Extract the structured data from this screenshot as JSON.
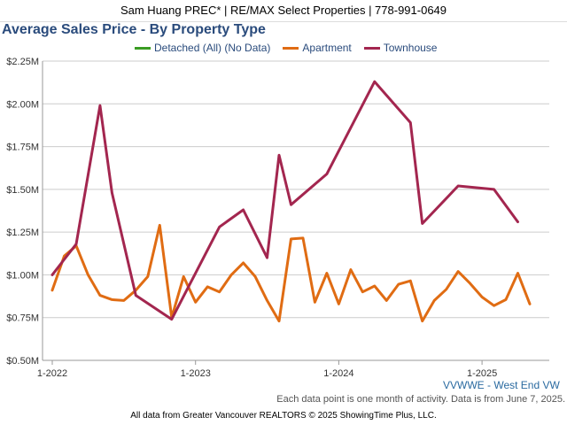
{
  "header": {
    "agent_line": "Sam Huang PREC* | RE/MAX Select Properties | 778-991-0649"
  },
  "chart_data": {
    "type": "line",
    "title": "Average Sales Price - By Property Type",
    "legend_placement": "top",
    "grid": "horizontal",
    "x_ticks": [
      "1-2022",
      "1-2023",
      "1-2024",
      "1-2025"
    ],
    "x_range": [
      0,
      41
    ],
    "y_ticks": [
      "$0.50M",
      "$0.75M",
      "$1.00M",
      "$1.25M",
      "$1.50M",
      "$1.75M",
      "$2.00M",
      "$2.25M"
    ],
    "ylim": [
      0.5,
      2.25
    ],
    "y_unit": "million CAD",
    "series": [
      {
        "name": "Detached (All) (No Data)",
        "color": "#3a9c23",
        "points": []
      },
      {
        "name": "Apartment",
        "color": "#e06c13",
        "points": [
          [
            0,
            0.91
          ],
          [
            1,
            1.11
          ],
          [
            2,
            1.17
          ],
          [
            3,
            1.0
          ],
          [
            4,
            0.88
          ],
          [
            5,
            0.855
          ],
          [
            6,
            0.85
          ],
          [
            7,
            0.91
          ],
          [
            8,
            0.99
          ],
          [
            9,
            1.29
          ],
          [
            10,
            0.75
          ],
          [
            11,
            0.99
          ],
          [
            12,
            0.84
          ],
          [
            13,
            0.93
          ],
          [
            14,
            0.9
          ],
          [
            15,
            1.0
          ],
          [
            16,
            1.07
          ],
          [
            17,
            0.99
          ],
          [
            18,
            0.85
          ],
          [
            19,
            0.73
          ],
          [
            20,
            1.21
          ],
          [
            21,
            1.215
          ],
          [
            22,
            0.84
          ],
          [
            23,
            1.01
          ],
          [
            24,
            0.83
          ],
          [
            25,
            1.03
          ],
          [
            26,
            0.9
          ],
          [
            27,
            0.935
          ],
          [
            28,
            0.85
          ],
          [
            29,
            0.945
          ],
          [
            30,
            0.965
          ],
          [
            31,
            0.73
          ],
          [
            32,
            0.85
          ],
          [
            33,
            0.915
          ],
          [
            34,
            1.02
          ],
          [
            35,
            0.95
          ],
          [
            36,
            0.87
          ],
          [
            37,
            0.82
          ],
          [
            38,
            0.855
          ],
          [
            39,
            1.01
          ],
          [
            40,
            0.83
          ]
        ]
      },
      {
        "name": "Townhouse",
        "color": "#a3264f",
        "points": [
          [
            0,
            1.0
          ],
          [
            1,
            1.09
          ],
          [
            2,
            1.18
          ],
          [
            4,
            1.99
          ],
          [
            5,
            1.48
          ],
          [
            7,
            0.88
          ],
          [
            10,
            0.74
          ],
          [
            14,
            1.28
          ],
          [
            16,
            1.38
          ],
          [
            18,
            1.1
          ],
          [
            19,
            1.7
          ],
          [
            20,
            1.41
          ],
          [
            23,
            1.59
          ],
          [
            27,
            2.13
          ],
          [
            30,
            1.89
          ],
          [
            31,
            1.3
          ],
          [
            34,
            1.52
          ],
          [
            37,
            1.5
          ],
          [
            39,
            1.31
          ]
        ]
      }
    ]
  },
  "region_label": "VVWWE - West End VW",
  "note": "Each data point is one month of activity. Data is from June 7, 2025.",
  "footer": "All data from Greater Vancouver REALTORS © 2025 ShowingTime Plus, LLC.",
  "colors": {
    "title": "#2a4b7c",
    "region": "#2a6aa0",
    "grid": "#cccccc",
    "axis": "#999999"
  }
}
